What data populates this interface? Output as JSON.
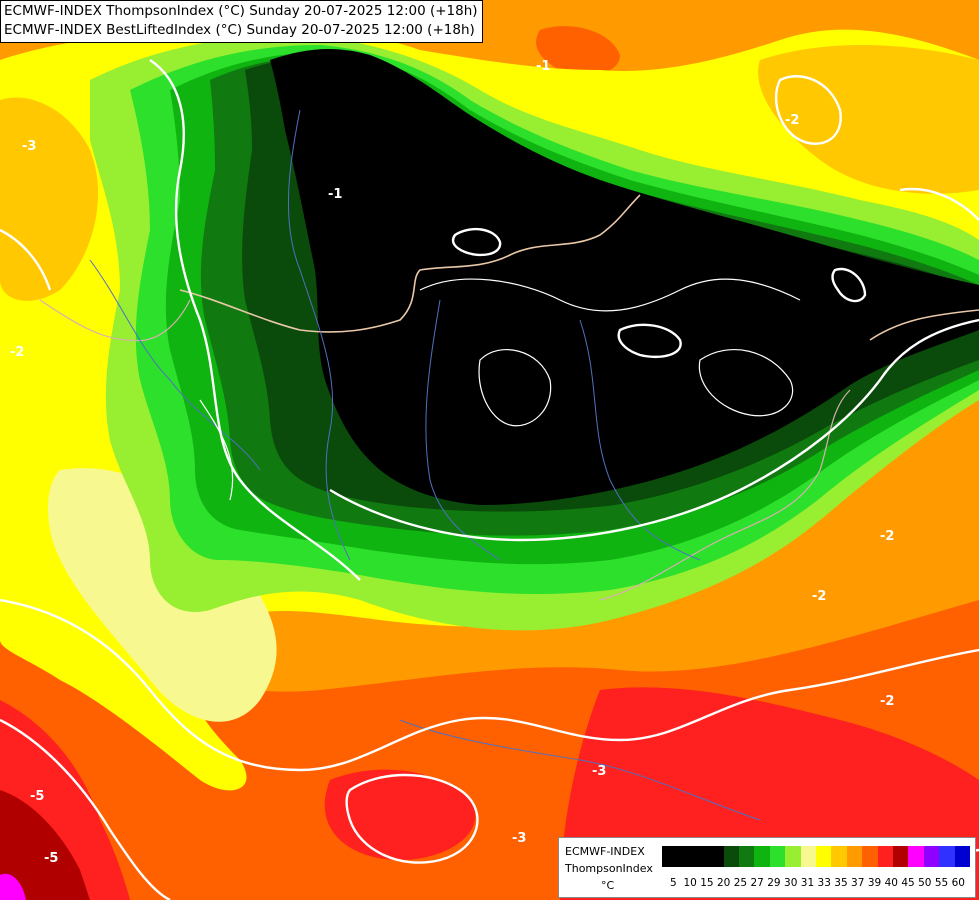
{
  "titles": {
    "line1": "ECMWF-INDEX ThompsonIndex (°C) Sunday 20-07-2025 12:00 (+18h)",
    "line2": "ECMWF-INDEX BestLiftedIndex (°C) Sunday 20-07-2025 12:00 (+18h)"
  },
  "legend": {
    "line1": "ECMWF-INDEX",
    "line2": "ThompsonIndex",
    "unit": "°C",
    "ticks": [
      "5",
      "10",
      "15",
      "20",
      "25",
      "27",
      "29",
      "30",
      "31",
      "33",
      "35",
      "37",
      "39",
      "40",
      "45",
      "50",
      "55",
      "60"
    ],
    "colors": [
      "#000000",
      "#000000",
      "#000000",
      "#000000",
      "#0a4a0a",
      "#107a10",
      "#10b410",
      "#2ce02c",
      "#98ee30",
      "#f8f890",
      "#ffff00",
      "#ffc800",
      "#ff9a00",
      "#ff6000",
      "#ff2020",
      "#b00000",
      "#ff00ff",
      "#9000ff",
      "#3030ff",
      "#0000d0"
    ]
  },
  "contour_labels": [
    "-3",
    "-2",
    "-2",
    "-1",
    "-1",
    "-2",
    "-2",
    "-3",
    "-5",
    "-5",
    "-2",
    "-3"
  ],
  "colors": {
    "black_core": "#000000",
    "dark_green": "#0a4a0a",
    "green": "#107a10",
    "bright_green": "#10b410",
    "lime": "#2ce02c",
    "yellow_green": "#98ee30",
    "pale_yellow": "#f8f890",
    "yellow": "#ffff00",
    "light_orange": "#ffc800",
    "orange": "#ff9a00",
    "dark_orange": "#ff6000",
    "red": "#ff2020",
    "dark_red": "#b00000",
    "magenta": "#ff00ff",
    "contour": "#ffffff",
    "border_beige": "#e8c8a8",
    "river_blue": "#5070c0"
  }
}
